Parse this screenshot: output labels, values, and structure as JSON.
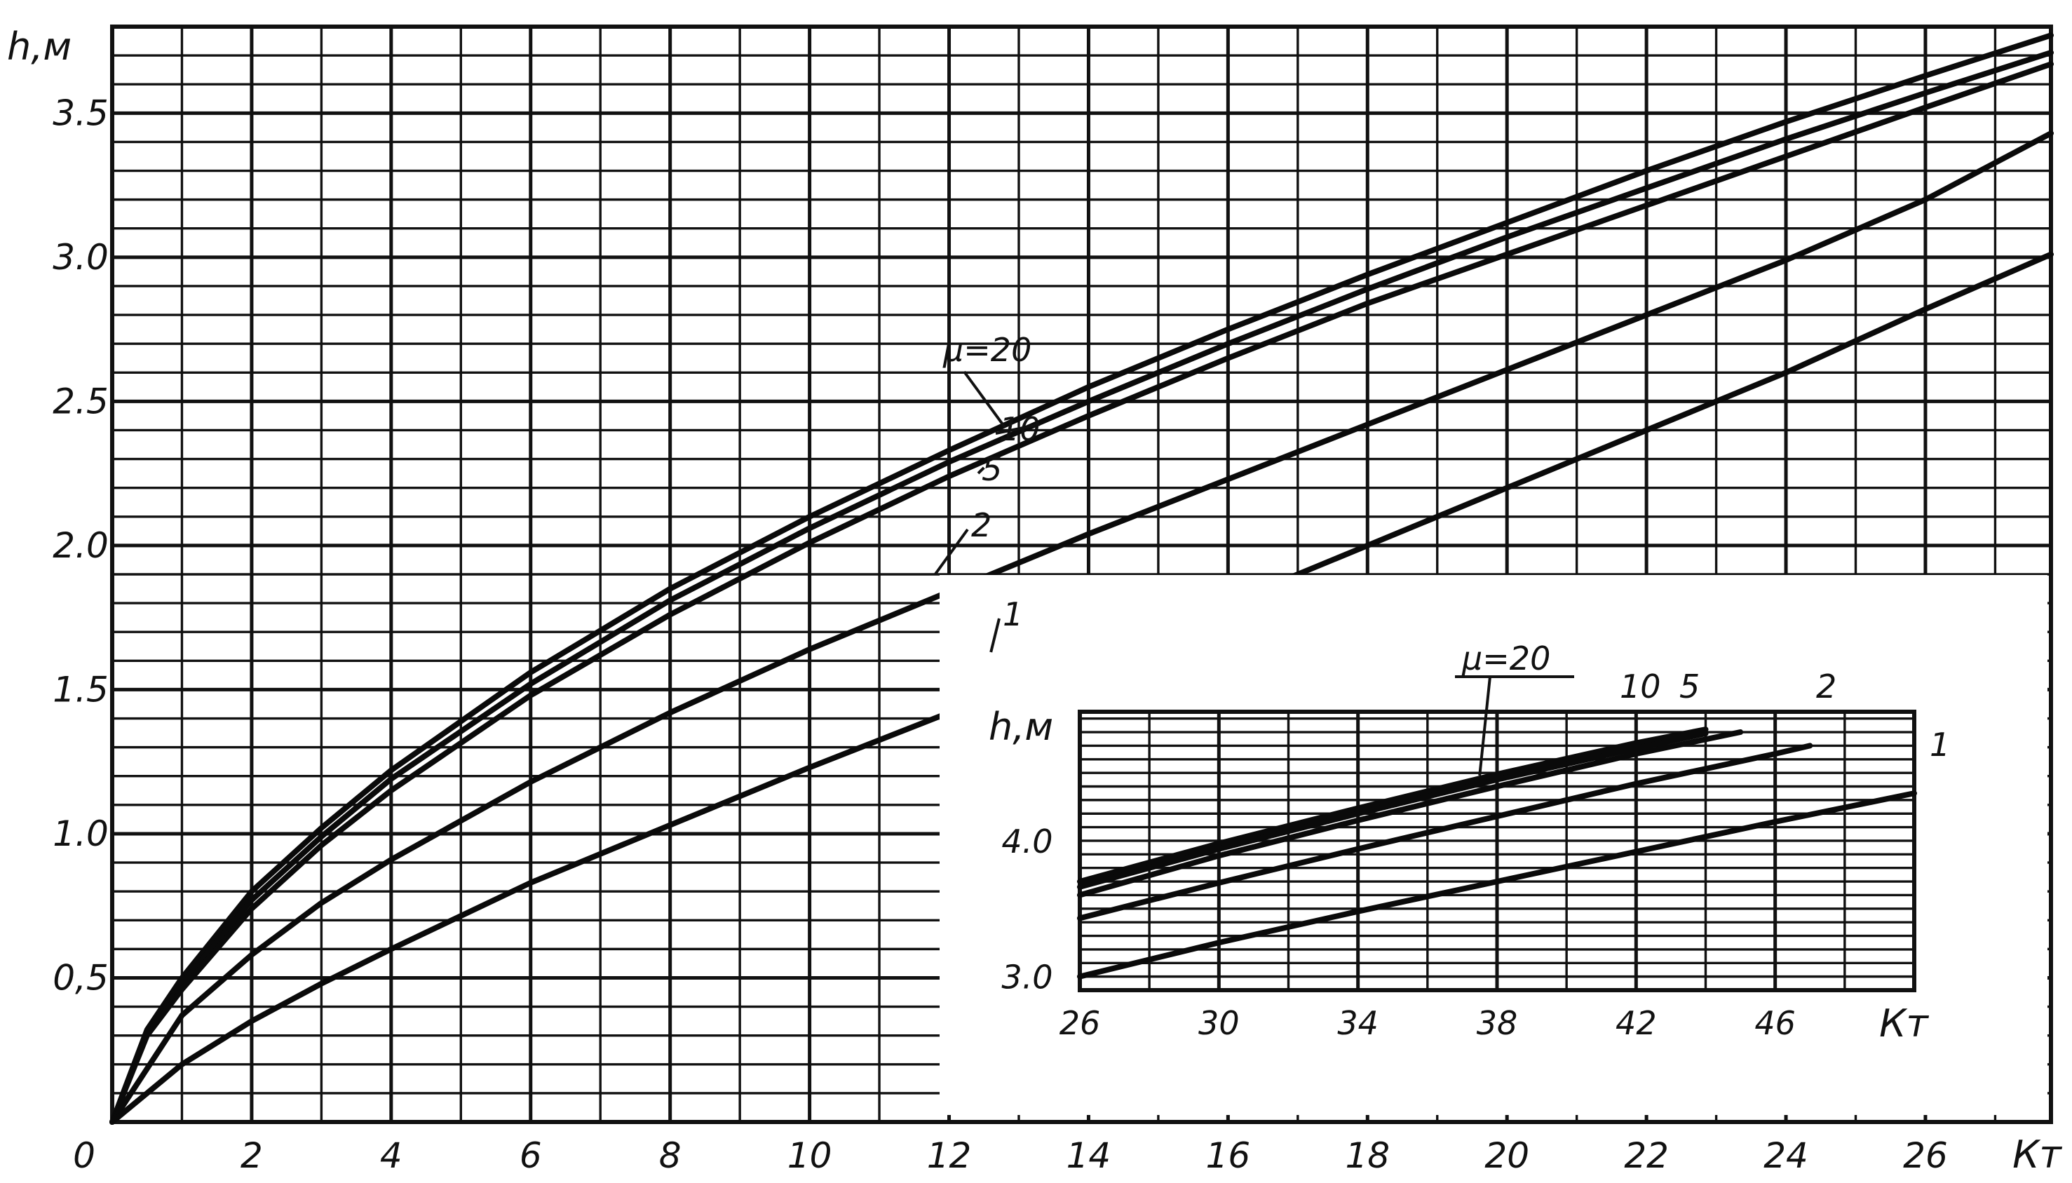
{
  "chart_data": [
    {
      "type": "line",
      "ylabel": "h,м",
      "xlabel": "Кт",
      "xlim": [
        0,
        27.8
      ],
      "ylim": [
        0,
        3.8
      ],
      "x_ticks": [
        "0",
        "2",
        "4",
        "6",
        "8",
        "10",
        "12",
        "14",
        "16",
        "18",
        "20",
        "22",
        "24",
        "26"
      ],
      "y_ticks": [
        "0,5",
        "1.0",
        "1.5",
        "2.0",
        "2.5",
        "3.0",
        "3.5"
      ],
      "grid": true,
      "series": [
        {
          "name": "μ=20",
          "label": "μ=20",
          "x": [
            0,
            0.5,
            1,
            2,
            3,
            4,
            6,
            8,
            10,
            12,
            14,
            16,
            18,
            20,
            22,
            24,
            26,
            27.8
          ],
          "y": [
            0,
            0.32,
            0.5,
            0.8,
            1.02,
            1.22,
            1.56,
            1.85,
            2.1,
            2.33,
            2.55,
            2.75,
            2.94,
            3.12,
            3.3,
            3.47,
            3.63,
            3.77
          ]
        },
        {
          "name": "μ=10",
          "label": "10",
          "x": [
            0,
            0.5,
            1,
            2,
            3,
            4,
            6,
            8,
            10,
            12,
            14,
            16,
            18,
            20,
            22,
            24,
            26,
            27.8
          ],
          "y": [
            0,
            0.31,
            0.48,
            0.77,
            0.99,
            1.19,
            1.52,
            1.81,
            2.06,
            2.29,
            2.5,
            2.7,
            2.89,
            3.07,
            3.24,
            3.41,
            3.57,
            3.71
          ]
        },
        {
          "name": "μ=5",
          "label": "5",
          "x": [
            0,
            0.5,
            1,
            2,
            3,
            4,
            6,
            8,
            10,
            12,
            14,
            16,
            18,
            20,
            22,
            24,
            26,
            27.8
          ],
          "y": [
            0,
            0.3,
            0.46,
            0.74,
            0.96,
            1.15,
            1.48,
            1.76,
            2.01,
            2.24,
            2.45,
            2.65,
            2.84,
            3.01,
            3.18,
            3.35,
            3.52,
            3.67
          ]
        },
        {
          "name": "μ=2",
          "label": "2",
          "x": [
            0,
            1,
            2,
            3,
            4,
            6,
            8,
            10,
            12,
            14,
            16,
            18,
            20,
            22,
            24,
            26,
            27.8
          ],
          "y": [
            0,
            0.37,
            0.58,
            0.76,
            0.91,
            1.18,
            1.42,
            1.64,
            1.84,
            2.04,
            2.23,
            2.42,
            2.61,
            2.8,
            2.99,
            3.2,
            3.43
          ]
        },
        {
          "name": "μ=1",
          "label": "1",
          "x": [
            0,
            1,
            2,
            3,
            4,
            6,
            8,
            10,
            12,
            14,
            16,
            18,
            20,
            22,
            24,
            26,
            27.8
          ],
          "y": [
            0,
            0.2,
            0.35,
            0.48,
            0.6,
            0.83,
            1.03,
            1.23,
            1.42,
            1.61,
            1.8,
            2.0,
            2.2,
            2.4,
            2.6,
            2.82,
            3.01
          ]
        }
      ]
    },
    {
      "type": "line",
      "ylabel": "h,м",
      "xlabel": "Кт",
      "xlim": [
        26,
        50
      ],
      "ylim": [
        2.9,
        4.95
      ],
      "x_ticks": [
        "26",
        "30",
        "34",
        "38",
        "42",
        "46"
      ],
      "y_ticks": [
        "3.0",
        "4.0"
      ],
      "grid": true,
      "series": [
        {
          "name": "μ=20",
          "label": "μ=20",
          "x": [
            26,
            30,
            34,
            38,
            42,
            44
          ],
          "y": [
            3.7,
            3.98,
            4.24,
            4.49,
            4.72,
            4.82
          ]
        },
        {
          "name": "μ=10",
          "label": "10",
          "x": [
            26,
            30,
            34,
            38,
            42,
            44
          ],
          "y": [
            3.66,
            3.94,
            4.2,
            4.45,
            4.68,
            4.79
          ]
        },
        {
          "name": "μ=5",
          "label": "5",
          "x": [
            26,
            30,
            34,
            38,
            42,
            45
          ],
          "y": [
            3.6,
            3.89,
            4.15,
            4.4,
            4.64,
            4.8
          ]
        },
        {
          "name": "μ=2",
          "label": "2",
          "x": [
            26,
            30,
            34,
            38,
            42,
            46,
            47
          ],
          "y": [
            3.43,
            3.69,
            3.94,
            4.18,
            4.42,
            4.64,
            4.7
          ]
        },
        {
          "name": "μ=1",
          "label": "1",
          "x": [
            26,
            30,
            34,
            38,
            42,
            46,
            50
          ],
          "y": [
            3.0,
            3.25,
            3.48,
            3.7,
            3.92,
            4.14,
            4.35
          ]
        }
      ]
    }
  ]
}
